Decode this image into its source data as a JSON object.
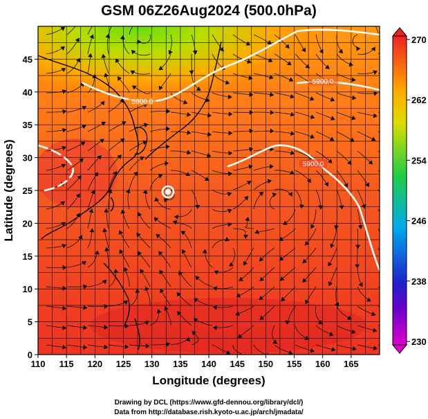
{
  "title": "GSM 06Z26Aug2024 (500.0hPa)",
  "axes": {
    "xlabel": "Longitude (degrees)",
    "ylabel": "Latitude  (degrees)",
    "xlim": [
      110,
      170
    ],
    "ylim": [
      0,
      50
    ],
    "x_ticks": [
      "110",
      "115",
      "120",
      "125",
      "130",
      "135",
      "140",
      "145",
      "150",
      "155",
      "160",
      "165"
    ],
    "y_ticks": [
      "0",
      "5",
      "10",
      "15",
      "20",
      "25",
      "30",
      "35",
      "40",
      "45"
    ],
    "grid": true
  },
  "colorbar": {
    "ticks": [
      "230",
      "238",
      "246",
      "254",
      "262",
      "270"
    ],
    "range": [
      230,
      270
    ],
    "colors": [
      "#dd00cc",
      "#2020cc",
      "#00aaee",
      "#22cc44",
      "#dddd00",
      "#ff7700",
      "#ee2222"
    ]
  },
  "contours": {
    "label": "5900.0",
    "color": "#ffffff"
  },
  "credits": {
    "line1": "Drawing by DCL (https://www.gfd-dennou.org/library/dcl/)",
    "line2": "Data from http://database.rish.kyoto-u.ac.jp/arch/jmadata/"
  },
  "map_features": [
    "coastlines",
    "streamlines",
    "temperature-shading",
    "geopotential-contours"
  ]
}
